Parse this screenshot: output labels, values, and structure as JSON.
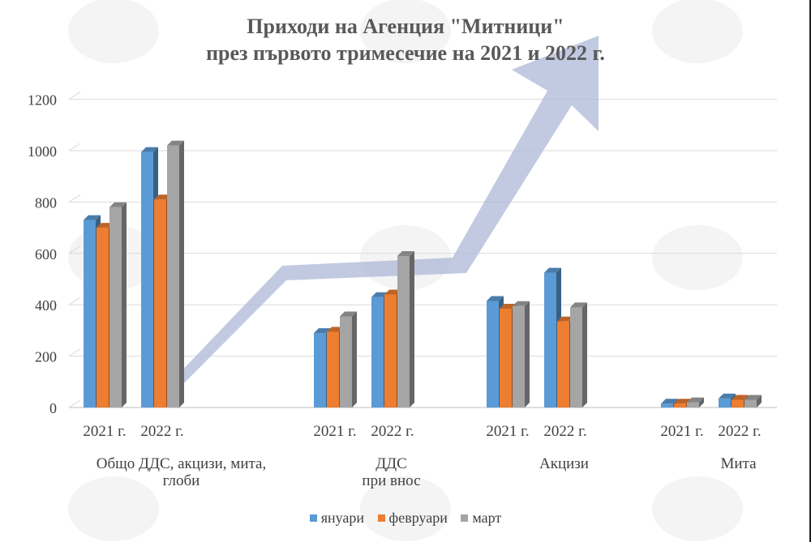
{
  "chart_data": {
    "type": "bar",
    "title": "Приходи на Агенция \"Митници\"",
    "subtitle": "през първото тримесечие на 2021 и 2022 г.",
    "xlabel": "",
    "ylabel": "",
    "ylim": [
      0,
      1200
    ],
    "yticks": [
      "0",
      "200",
      "400",
      "600",
      "800",
      "1000",
      "1200"
    ],
    "grid": true,
    "legend_position": "bottom",
    "groups": [
      {
        "name": "Общо ДДС, акцизи, мита,",
        "name2": "глоби",
        "periods": [
          "2021 г.",
          "2022 г."
        ]
      },
      {
        "name": "ДДС",
        "name2": "при внос",
        "periods": [
          "2021 г.",
          "2022 г."
        ]
      },
      {
        "name": "Акцизи",
        "name2": "",
        "periods": [
          "2021 г.",
          "2022 г."
        ]
      },
      {
        "name": "Мита",
        "name2": "",
        "periods": [
          "2021 г.",
          "2022 г."
        ]
      }
    ],
    "series": [
      {
        "name": "януари",
        "color": "#5B9BD5",
        "values": [
          [
            730,
            995
          ],
          [
            290,
            430
          ],
          [
            415,
            525
          ],
          [
            15,
            35
          ]
        ]
      },
      {
        "name": "февруари",
        "color": "#ED7D31",
        "values": [
          [
            700,
            810
          ],
          [
            295,
            440
          ],
          [
            385,
            335
          ],
          [
            15,
            30
          ]
        ]
      },
      {
        "name": "март",
        "color": "#A5A5A5",
        "values": [
          [
            780,
            1020
          ],
          [
            355,
            590
          ],
          [
            395,
            390
          ],
          [
            20,
            30
          ]
        ]
      }
    ]
  }
}
